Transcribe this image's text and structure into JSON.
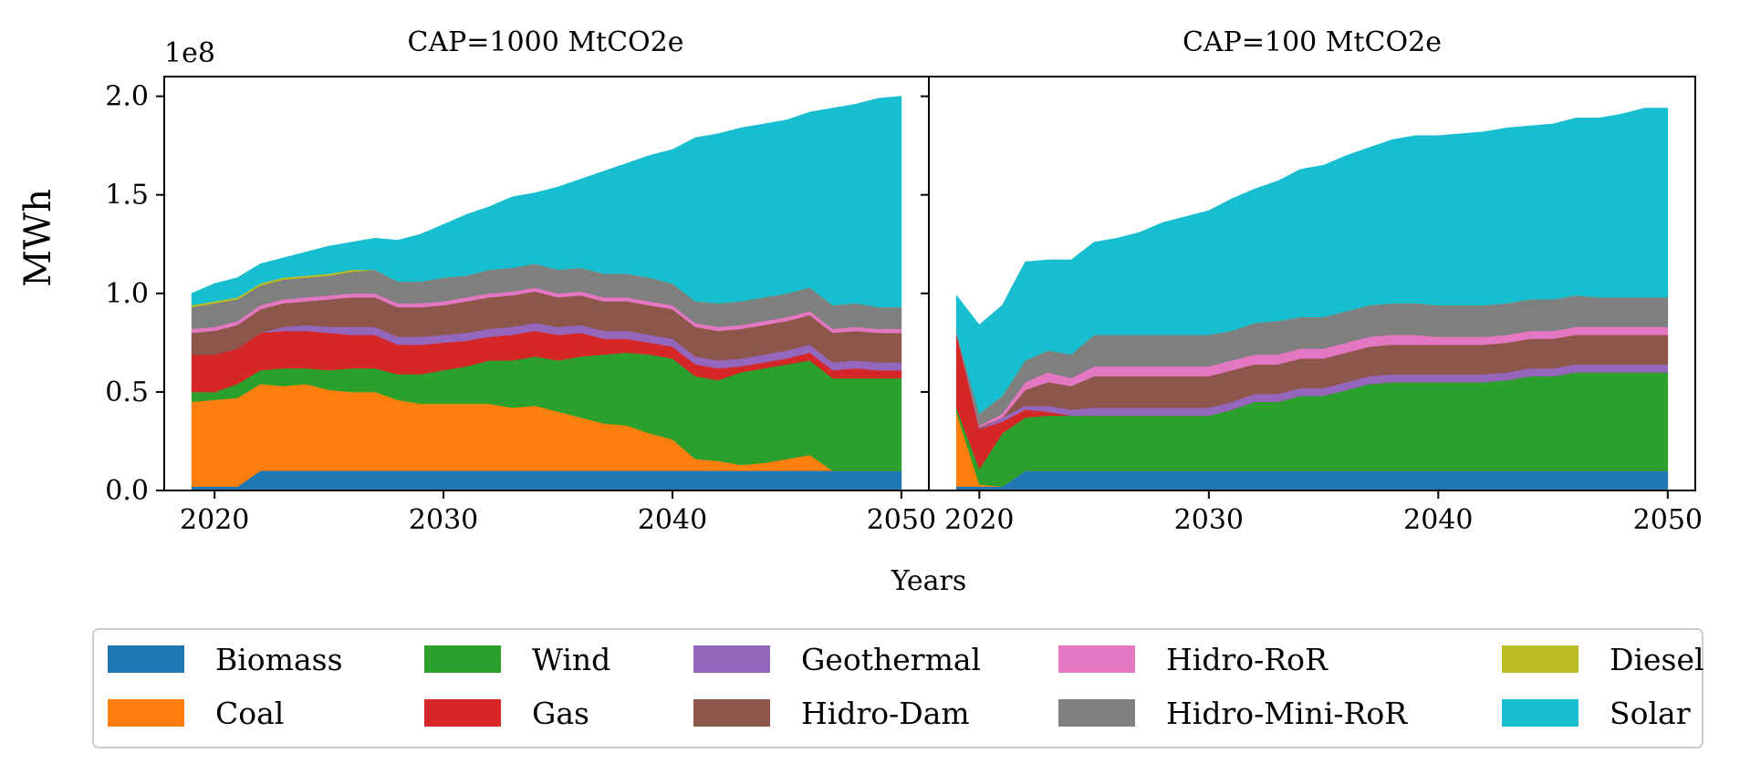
{
  "chart_data": {
    "type": "area",
    "stacked": true,
    "xlabel": "Years",
    "ylabel": "MWh",
    "y_offset_label": "1e8",
    "y_scale": 100000000,
    "ylim": [
      0.0,
      2.1
    ],
    "yticks": [
      0.0,
      0.5,
      1.0,
      1.5,
      2.0
    ],
    "ytick_labels": [
      "0.0",
      "0.5",
      "1.0",
      "1.5",
      "2.0"
    ],
    "xlim": [
      2017.8,
      2051.2
    ],
    "xticks": [
      2020,
      2030,
      2040,
      2050
    ],
    "xtick_labels": [
      "2020",
      "2030",
      "2040",
      "2050"
    ],
    "x": [
      2019,
      2020,
      2021,
      2022,
      2023,
      2024,
      2025,
      2026,
      2027,
      2028,
      2029,
      2030,
      2031,
      2032,
      2033,
      2034,
      2035,
      2036,
      2037,
      2038,
      2039,
      2040,
      2041,
      2042,
      2043,
      2044,
      2045,
      2046,
      2047,
      2048,
      2049,
      2050
    ],
    "legend_location": "bottom",
    "legend": [
      {
        "name": "Biomass",
        "color": "#1f77b4"
      },
      {
        "name": "Coal",
        "color": "#ff7f0e"
      },
      {
        "name": "Wind",
        "color": "#2ca02c"
      },
      {
        "name": "Gas",
        "color": "#d62728"
      },
      {
        "name": "Geothermal",
        "color": "#9467bd"
      },
      {
        "name": "Hidro-Dam",
        "color": "#8c564b"
      },
      {
        "name": "Hidro-RoR",
        "color": "#e377c2"
      },
      {
        "name": "Hidro-Mini-RoR",
        "color": "#7f7f7f"
      },
      {
        "name": "Diesel",
        "color": "#bcbd22"
      },
      {
        "name": "Solar",
        "color": "#17becf"
      }
    ],
    "panels": [
      {
        "title": "CAP=1000 MtCO2e",
        "series": [
          {
            "name": "Biomass",
            "values": [
              0.02,
              0.02,
              0.02,
              0.1,
              0.1,
              0.1,
              0.1,
              0.1,
              0.1,
              0.1,
              0.1,
              0.1,
              0.1,
              0.1,
              0.1,
              0.1,
              0.1,
              0.1,
              0.1,
              0.1,
              0.1,
              0.1,
              0.1,
              0.1,
              0.1,
              0.1,
              0.1,
              0.1,
              0.1,
              0.1,
              0.1,
              0.1
            ]
          },
          {
            "name": "Coal",
            "values": [
              0.43,
              0.44,
              0.45,
              0.44,
              0.43,
              0.44,
              0.41,
              0.4,
              0.4,
              0.36,
              0.34,
              0.34,
              0.34,
              0.34,
              0.32,
              0.33,
              0.3,
              0.27,
              0.24,
              0.23,
              0.19,
              0.16,
              0.06,
              0.05,
              0.03,
              0.04,
              0.06,
              0.08,
              0.0,
              0.0,
              0.0,
              0.0
            ]
          },
          {
            "name": "Wind",
            "values": [
              0.05,
              0.04,
              0.07,
              0.07,
              0.09,
              0.08,
              0.1,
              0.12,
              0.12,
              0.13,
              0.15,
              0.17,
              0.19,
              0.22,
              0.24,
              0.25,
              0.26,
              0.31,
              0.35,
              0.37,
              0.4,
              0.41,
              0.42,
              0.41,
              0.47,
              0.48,
              0.48,
              0.48,
              0.47,
              0.47,
              0.47,
              0.47
            ]
          },
          {
            "name": "Gas",
            "values": [
              0.19,
              0.19,
              0.18,
              0.19,
              0.19,
              0.19,
              0.19,
              0.17,
              0.17,
              0.15,
              0.15,
              0.14,
              0.13,
              0.12,
              0.13,
              0.13,
              0.13,
              0.12,
              0.08,
              0.07,
              0.06,
              0.06,
              0.06,
              0.06,
              0.03,
              0.03,
              0.03,
              0.04,
              0.04,
              0.05,
              0.04,
              0.04
            ]
          },
          {
            "name": "Geothermal",
            "values": [
              0.0,
              0.0,
              0.0,
              0.0,
              0.02,
              0.03,
              0.03,
              0.04,
              0.04,
              0.04,
              0.04,
              0.04,
              0.04,
              0.04,
              0.04,
              0.04,
              0.04,
              0.04,
              0.04,
              0.04,
              0.04,
              0.04,
              0.04,
              0.04,
              0.04,
              0.04,
              0.04,
              0.04,
              0.04,
              0.04,
              0.04,
              0.04
            ]
          },
          {
            "name": "Hidro-Dam",
            "values": [
              0.11,
              0.12,
              0.12,
              0.12,
              0.12,
              0.12,
              0.14,
              0.15,
              0.15,
              0.15,
              0.15,
              0.15,
              0.16,
              0.16,
              0.16,
              0.16,
              0.15,
              0.15,
              0.15,
              0.15,
              0.15,
              0.15,
              0.15,
              0.15,
              0.15,
              0.15,
              0.15,
              0.15,
              0.15,
              0.15,
              0.15,
              0.15
            ]
          },
          {
            "name": "Hidro-RoR",
            "values": [
              0.02,
              0.02,
              0.02,
              0.02,
              0.02,
              0.02,
              0.02,
              0.02,
              0.02,
              0.02,
              0.02,
              0.02,
              0.02,
              0.02,
              0.02,
              0.02,
              0.02,
              0.02,
              0.02,
              0.02,
              0.02,
              0.02,
              0.02,
              0.02,
              0.02,
              0.02,
              0.02,
              0.02,
              0.02,
              0.02,
              0.02,
              0.02
            ]
          },
          {
            "name": "Hidro-Mini-RoR",
            "values": [
              0.11,
              0.12,
              0.11,
              0.1,
              0.1,
              0.1,
              0.1,
              0.11,
              0.12,
              0.11,
              0.11,
              0.12,
              0.11,
              0.12,
              0.12,
              0.12,
              0.12,
              0.12,
              0.12,
              0.12,
              0.12,
              0.11,
              0.11,
              0.12,
              0.12,
              0.12,
              0.12,
              0.12,
              0.12,
              0.12,
              0.11,
              0.11
            ]
          },
          {
            "name": "Diesel",
            "values": [
              0.01,
              0.01,
              0.01,
              0.01,
              0.01,
              0.01,
              0.01,
              0.01,
              0.0,
              0.0,
              0.0,
              0.0,
              0.0,
              0.0,
              0.0,
              0.0,
              0.0,
              0.0,
              0.0,
              0.0,
              0.0,
              0.0,
              0.0,
              0.0,
              0.0,
              0.0,
              0.0,
              0.0,
              0.0,
              0.0,
              0.0,
              0.0
            ]
          },
          {
            "name": "Solar",
            "values": [
              0.06,
              0.09,
              0.1,
              0.1,
              0.1,
              0.12,
              0.14,
              0.14,
              0.16,
              0.21,
              0.24,
              0.27,
              0.31,
              0.32,
              0.36,
              0.36,
              0.42,
              0.45,
              0.52,
              0.56,
              0.62,
              0.68,
              0.83,
              0.86,
              0.88,
              0.88,
              0.88,
              0.89,
              1.0,
              1.01,
              1.06,
              1.07
            ]
          }
        ]
      },
      {
        "title": "CAP=100 MtCO2e",
        "series": [
          {
            "name": "Biomass",
            "values": [
              0.02,
              0.02,
              0.02,
              0.1,
              0.1,
              0.1,
              0.1,
              0.1,
              0.1,
              0.1,
              0.1,
              0.1,
              0.1,
              0.1,
              0.1,
              0.1,
              0.1,
              0.1,
              0.1,
              0.1,
              0.1,
              0.1,
              0.1,
              0.1,
              0.1,
              0.1,
              0.1,
              0.1,
              0.1,
              0.1,
              0.1,
              0.1
            ]
          },
          {
            "name": "Coal",
            "values": [
              0.38,
              0.01,
              0.0,
              0.0,
              0.0,
              0.0,
              0.0,
              0.0,
              0.0,
              0.0,
              0.0,
              0.0,
              0.0,
              0.0,
              0.0,
              0.0,
              0.0,
              0.0,
              0.0,
              0.0,
              0.0,
              0.0,
              0.0,
              0.0,
              0.0,
              0.0,
              0.0,
              0.0,
              0.0,
              0.0,
              0.0,
              0.0
            ]
          },
          {
            "name": "Wind",
            "values": [
              0.02,
              0.08,
              0.27,
              0.27,
              0.28,
              0.28,
              0.28,
              0.28,
              0.28,
              0.28,
              0.28,
              0.28,
              0.31,
              0.35,
              0.35,
              0.38,
              0.38,
              0.41,
              0.44,
              0.45,
              0.45,
              0.45,
              0.45,
              0.45,
              0.46,
              0.48,
              0.48,
              0.5,
              0.5,
              0.5,
              0.5,
              0.5
            ]
          },
          {
            "name": "Gas",
            "values": [
              0.38,
              0.2,
              0.06,
              0.04,
              0.02,
              0.0,
              0.0,
              0.0,
              0.0,
              0.0,
              0.0,
              0.0,
              0.0,
              0.0,
              0.0,
              0.0,
              0.0,
              0.0,
              0.0,
              0.0,
              0.0,
              0.0,
              0.0,
              0.0,
              0.0,
              0.0,
              0.0,
              0.0,
              0.0,
              0.0,
              0.0,
              0.0
            ]
          },
          {
            "name": "Geothermal",
            "values": [
              0.0,
              0.0,
              0.02,
              0.02,
              0.03,
              0.03,
              0.04,
              0.04,
              0.04,
              0.04,
              0.04,
              0.04,
              0.04,
              0.04,
              0.04,
              0.04,
              0.04,
              0.04,
              0.04,
              0.04,
              0.04,
              0.04,
              0.04,
              0.04,
              0.04,
              0.04,
              0.04,
              0.04,
              0.04,
              0.04,
              0.04,
              0.04
            ]
          },
          {
            "name": "Hidro-Dam",
            "values": [
              0.0,
              0.01,
              0.0,
              0.08,
              0.12,
              0.12,
              0.16,
              0.16,
              0.16,
              0.16,
              0.16,
              0.16,
              0.16,
              0.15,
              0.15,
              0.15,
              0.15,
              0.15,
              0.15,
              0.15,
              0.15,
              0.15,
              0.15,
              0.15,
              0.15,
              0.15,
              0.15,
              0.15,
              0.15,
              0.15,
              0.15,
              0.15
            ]
          },
          {
            "name": "Hidro-RoR",
            "values": [
              0.0,
              0.01,
              0.02,
              0.04,
              0.05,
              0.04,
              0.05,
              0.05,
              0.05,
              0.05,
              0.05,
              0.05,
              0.05,
              0.05,
              0.05,
              0.05,
              0.05,
              0.05,
              0.05,
              0.05,
              0.05,
              0.04,
              0.04,
              0.04,
              0.04,
              0.04,
              0.04,
              0.04,
              0.04,
              0.04,
              0.04,
              0.04
            ]
          },
          {
            "name": "Hidro-Mini-RoR",
            "values": [
              0.0,
              0.06,
              0.09,
              0.11,
              0.11,
              0.12,
              0.16,
              0.16,
              0.16,
              0.16,
              0.16,
              0.16,
              0.15,
              0.16,
              0.17,
              0.16,
              0.16,
              0.16,
              0.16,
              0.16,
              0.16,
              0.16,
              0.16,
              0.16,
              0.16,
              0.16,
              0.16,
              0.16,
              0.15,
              0.15,
              0.15,
              0.15
            ]
          },
          {
            "name": "Diesel",
            "values": [
              0.0,
              0.0,
              0.0,
              0.0,
              0.0,
              0.0,
              0.0,
              0.0,
              0.0,
              0.0,
              0.0,
              0.0,
              0.0,
              0.0,
              0.0,
              0.0,
              0.0,
              0.0,
              0.0,
              0.0,
              0.0,
              0.0,
              0.0,
              0.0,
              0.0,
              0.0,
              0.0,
              0.0,
              0.0,
              0.0,
              0.0,
              0.0
            ]
          },
          {
            "name": "Solar",
            "values": [
              0.19,
              0.45,
              0.46,
              0.5,
              0.46,
              0.48,
              0.47,
              0.49,
              0.52,
              0.57,
              0.6,
              0.63,
              0.67,
              0.68,
              0.71,
              0.75,
              0.77,
              0.79,
              0.8,
              0.83,
              0.85,
              0.86,
              0.87,
              0.88,
              0.89,
              0.88,
              0.89,
              0.9,
              0.91,
              0.93,
              0.96,
              0.96
            ]
          }
        ]
      }
    ]
  }
}
